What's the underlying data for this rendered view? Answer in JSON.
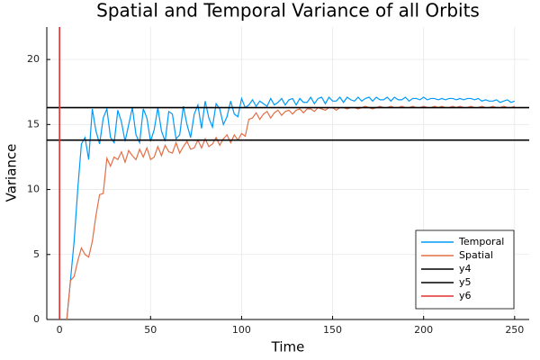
{
  "chart_data": {
    "type": "line",
    "title": "Spatial and Temporal Variance of all Orbits",
    "xlabel": "Time",
    "ylabel": "Variance",
    "xlim": [
      -7,
      258
    ],
    "ylim": [
      0,
      22.5
    ],
    "xticks": [
      0,
      50,
      100,
      150,
      200,
      250
    ],
    "yticks": [
      0,
      5,
      10,
      15,
      20
    ],
    "grid": true,
    "legend": "bottom-right",
    "x": [
      4,
      6,
      8,
      10,
      12,
      14,
      16,
      18,
      20,
      22,
      24,
      26,
      28,
      30,
      32,
      34,
      36,
      38,
      40,
      42,
      44,
      46,
      48,
      50,
      52,
      54,
      56,
      58,
      60,
      62,
      64,
      66,
      68,
      70,
      72,
      74,
      76,
      78,
      80,
      82,
      84,
      86,
      88,
      90,
      92,
      94,
      96,
      98,
      100,
      102,
      104,
      106,
      108,
      110,
      112,
      114,
      116,
      118,
      120,
      122,
      124,
      126,
      128,
      130,
      132,
      134,
      136,
      138,
      140,
      142,
      144,
      146,
      148,
      150,
      152,
      154,
      156,
      158,
      160,
      162,
      164,
      166,
      168,
      170,
      172,
      174,
      176,
      178,
      180,
      182,
      184,
      186,
      188,
      190,
      192,
      194,
      196,
      198,
      200,
      202,
      204,
      206,
      208,
      210,
      212,
      214,
      216,
      218,
      220,
      222,
      224,
      226,
      228,
      230,
      232,
      234,
      236,
      238,
      240,
      242,
      244,
      246,
      248,
      250
    ],
    "series": [
      {
        "name": "Temporal",
        "color": "#009af9",
        "values": [
          0,
          3,
          6,
          10,
          13.5,
          14,
          12.3,
          16.2,
          14.5,
          13.5,
          15.5,
          16.2,
          14,
          13.6,
          16.1,
          15.2,
          13.7,
          15,
          16.3,
          14.2,
          13.6,
          16.2,
          15.5,
          13.7,
          14.6,
          16.3,
          14.5,
          13.7,
          16,
          15.8,
          13.9,
          14.2,
          16.4,
          15,
          14,
          15.8,
          16.5,
          14.7,
          16.8,
          15.5,
          14.8,
          16.6,
          16.2,
          15,
          15.6,
          16.8,
          15.8,
          15.6,
          17,
          16.3,
          16.5,
          16.9,
          16.4,
          16.8,
          16.6,
          16.4,
          17,
          16.5,
          16.7,
          17,
          16.5,
          16.9,
          17,
          16.5,
          17,
          16.7,
          16.7,
          17.1,
          16.6,
          17,
          17.1,
          16.6,
          17.1,
          16.8,
          16.8,
          17.1,
          16.7,
          17.1,
          16.9,
          16.8,
          17.1,
          16.8,
          17,
          17.1,
          16.8,
          17.1,
          16.9,
          16.9,
          17.1,
          16.8,
          17.1,
          16.9,
          16.9,
          17.1,
          16.8,
          17,
          17,
          16.9,
          17.1,
          16.9,
          17,
          17,
          16.9,
          17,
          16.9,
          17,
          17,
          16.9,
          17,
          16.9,
          17,
          17,
          16.9,
          17,
          16.8,
          16.9,
          16.8,
          16.8,
          16.9,
          16.7,
          16.8,
          16.9,
          16.7,
          16.8
        ]
      },
      {
        "name": "Spatial",
        "color": "#e26f46",
        "values": [
          0,
          3,
          3.3,
          4.5,
          5.5,
          5,
          4.8,
          6,
          8,
          9.6,
          9.7,
          12.4,
          11.8,
          12.5,
          12.3,
          12.9,
          12.1,
          13,
          12.6,
          12.3,
          13.1,
          12.5,
          13.2,
          12.3,
          12.5,
          13.3,
          12.6,
          13.4,
          12.9,
          12.8,
          13.6,
          12.8,
          13.3,
          13.7,
          13.1,
          13.2,
          13.8,
          13.2,
          13.9,
          13.3,
          13.5,
          14,
          13.4,
          13.9,
          14.2,
          13.6,
          14.2,
          13.8,
          14.3,
          14.1,
          15.4,
          15.5,
          15.9,
          15.4,
          15.8,
          16,
          15.5,
          15.9,
          16.1,
          15.7,
          16,
          16.1,
          15.8,
          16.1,
          16.2,
          15.9,
          16.2,
          16.2,
          16,
          16.3,
          16.2,
          16.1,
          16.3,
          16.3,
          16.1,
          16.3,
          16.3,
          16.2,
          16.3,
          16.3,
          16.2,
          16.3,
          16.4,
          16.3,
          16.2,
          16.3,
          16.4,
          16.3,
          16.3,
          16.4,
          16.3,
          16.3,
          16.4,
          16.3,
          16.3,
          16.4,
          16.3,
          16.3,
          16.4,
          16.3,
          16.3,
          16.4,
          16.3,
          16.4,
          16.3,
          16.3,
          16.4,
          16.3,
          16.4,
          16.3,
          16.3,
          16.4,
          16.3,
          16.3,
          16.4,
          16.3,
          16.3,
          16.4,
          16.3,
          16.3,
          16.4,
          16.3,
          16.3,
          16.4
        ]
      }
    ],
    "reference_lines": [
      {
        "name": "y4",
        "color": "#000000",
        "orientation": "horizontal",
        "value": 16.3
      },
      {
        "name": "y5",
        "color": "#000000",
        "orientation": "horizontal",
        "value": 13.8
      },
      {
        "name": "y6",
        "color": "#e0302e",
        "orientation": "vertical",
        "value": 0
      }
    ]
  }
}
